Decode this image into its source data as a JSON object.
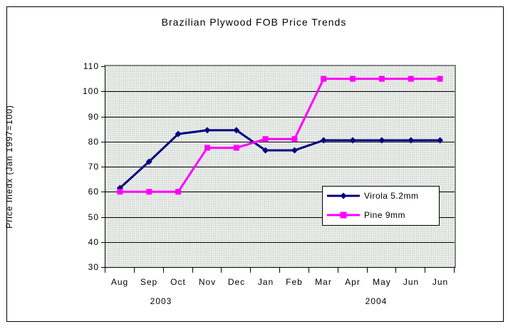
{
  "title": "Brazilian Plywood FOB Price Trends",
  "chart_data": {
    "type": "line",
    "title": "Brazilian Plywood FOB Price Trends",
    "xlabel": "",
    "ylabel": "Price Inedx (Jan 1997=100)",
    "ylim": [
      30,
      110
    ],
    "yticks": [
      110,
      100,
      90,
      80,
      70,
      60,
      50,
      40,
      30
    ],
    "grid": true,
    "plot_bg_color": "#e8ece8",
    "categories": [
      "Aug",
      "Sep",
      "Oct",
      "Nov",
      "Dec",
      "Jan",
      "Feb",
      "Mar",
      "Apr",
      "May",
      "Jun",
      "Jun"
    ],
    "year_labels": [
      {
        "text": "2003",
        "position_index": 1.4
      },
      {
        "text": "2004",
        "position_index": 8.8
      }
    ],
    "legend_position": "inside-middle-right",
    "series": [
      {
        "name": "Virola 5.2mm",
        "color": "#000080",
        "marker": "diamond",
        "values": [
          61.5,
          72,
          83,
          84.5,
          84.5,
          76.5,
          76.5,
          80.5,
          80.5,
          80.5,
          80.5,
          80.5
        ]
      },
      {
        "name": "Pine 9mm",
        "color": "#ff00ff",
        "marker": "square",
        "values": [
          60,
          60,
          60,
          77.5,
          77.5,
          81,
          81,
          105,
          105,
          105,
          105,
          105
        ]
      }
    ]
  }
}
